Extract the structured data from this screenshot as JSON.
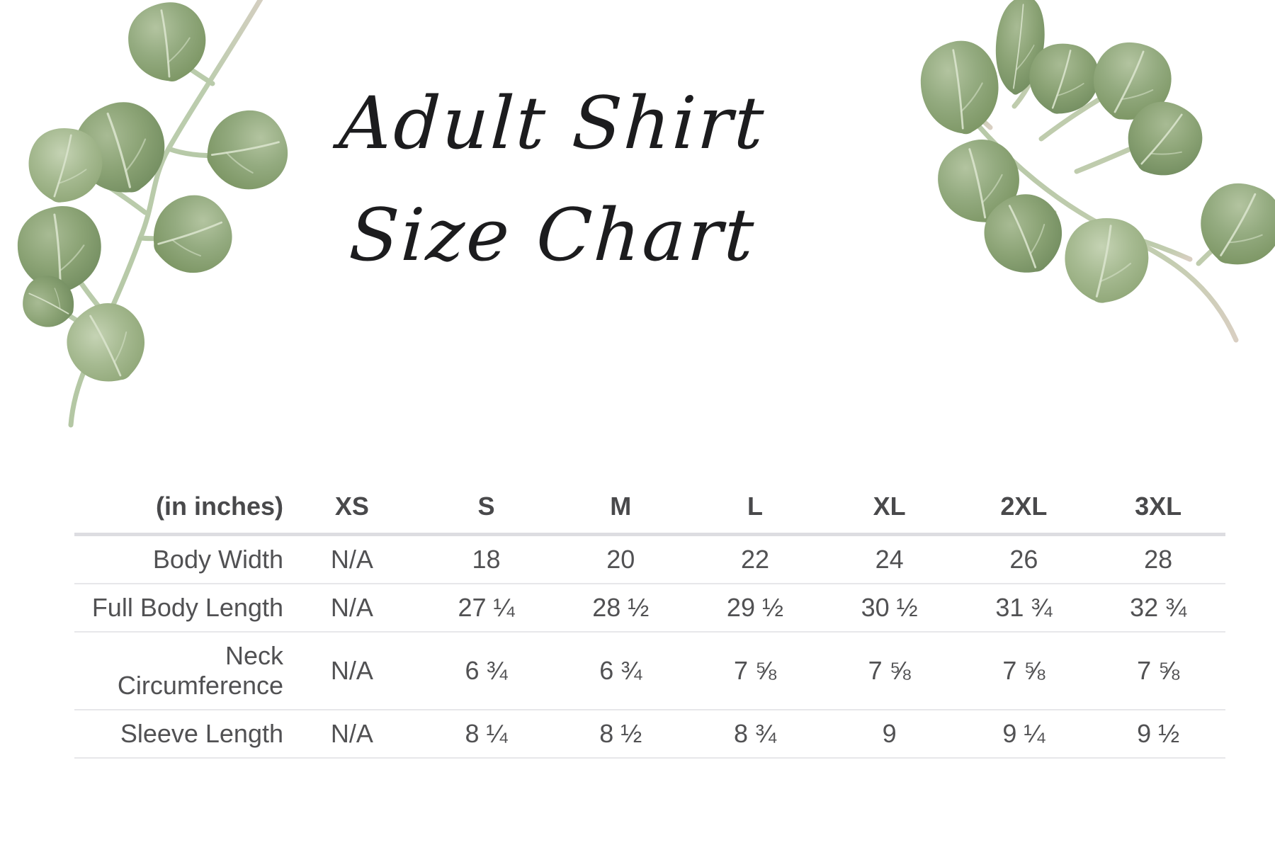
{
  "page": {
    "title_line1": "Adult Shirt",
    "title_line2": "Size Chart"
  },
  "chart_data": {
    "type": "table",
    "title": "Adult Shirt Size Chart",
    "unit_label": "(in inches)",
    "columns": [
      "XS",
      "S",
      "M",
      "L",
      "XL",
      "2XL",
      "3XL"
    ],
    "rows": [
      {
        "label": "Body Width",
        "values": [
          "N/A",
          "18",
          "20",
          "22",
          "24",
          "26",
          "28"
        ]
      },
      {
        "label": "Full Body Length",
        "values": [
          "N/A",
          "27 ¼",
          "28 ½",
          "29 ½",
          "30 ½",
          "31 ¾",
          "32 ¾"
        ]
      },
      {
        "label": "Neck Circumference",
        "values": [
          "N/A",
          "6 ¾",
          "6 ¾",
          "7 ⅝",
          "7 ⅝",
          "7 ⅝",
          "7 ⅝"
        ]
      },
      {
        "label": "Sleeve Length",
        "values": [
          "N/A",
          "8 ¼",
          "8 ½",
          "8 ¾",
          "9",
          "9 ¼",
          "9 ½"
        ]
      }
    ]
  },
  "decorations": [
    {
      "name": "eucalyptus-branch-top-left"
    },
    {
      "name": "eucalyptus-branch-top-right"
    }
  ],
  "colors": {
    "background": "#ffffff",
    "title_ink": "#1c1c1e",
    "table_text": "#515153",
    "header_text": "#49494b",
    "divider_heavy": "#dddde1",
    "divider_light": "#e7e7ea",
    "leaf_green_mid": "#93ab7f",
    "leaf_green_dark": "#74905f",
    "leaf_green_light": "#b9c9a8",
    "leaf_vein": "#d9e3cc",
    "stem_green": "#bccdae",
    "stem_dry": "#d9cfc2"
  }
}
